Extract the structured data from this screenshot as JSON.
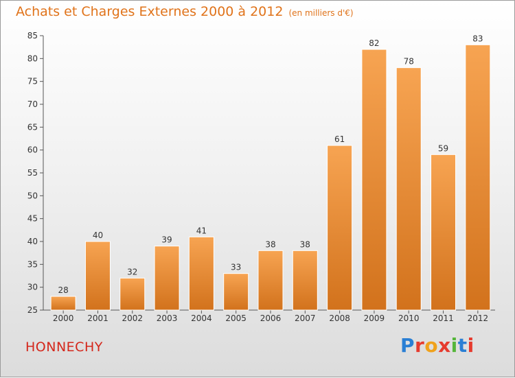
{
  "header": {
    "title": "Achats et Charges Externes 2000 à 2012",
    "unit": "(en milliers d'€)"
  },
  "footer": {
    "city": "HONNECHY",
    "logo": "Proxiti",
    "logo_colors": [
      "#2a7fd4",
      "#e63b2e",
      "#f0a21c",
      "#e63b2e",
      "#55b63a",
      "#2a7fd4",
      "#e63b2e"
    ]
  },
  "chart_data": {
    "type": "bar",
    "categories": [
      "2000",
      "2001",
      "2002",
      "2003",
      "2004",
      "2005",
      "2006",
      "2007",
      "2008",
      "2009",
      "2010",
      "2011",
      "2012"
    ],
    "values": [
      28,
      40,
      32,
      39,
      41,
      33,
      38,
      38,
      61,
      82,
      78,
      59,
      83
    ],
    "ylim": [
      25,
      85
    ],
    "yticks": [
      25,
      30,
      35,
      40,
      45,
      50,
      55,
      60,
      65,
      70,
      75,
      80,
      85
    ],
    "grid": false,
    "bar_color_top": "#f7a452",
    "bar_color_bottom": "#d2721c"
  }
}
